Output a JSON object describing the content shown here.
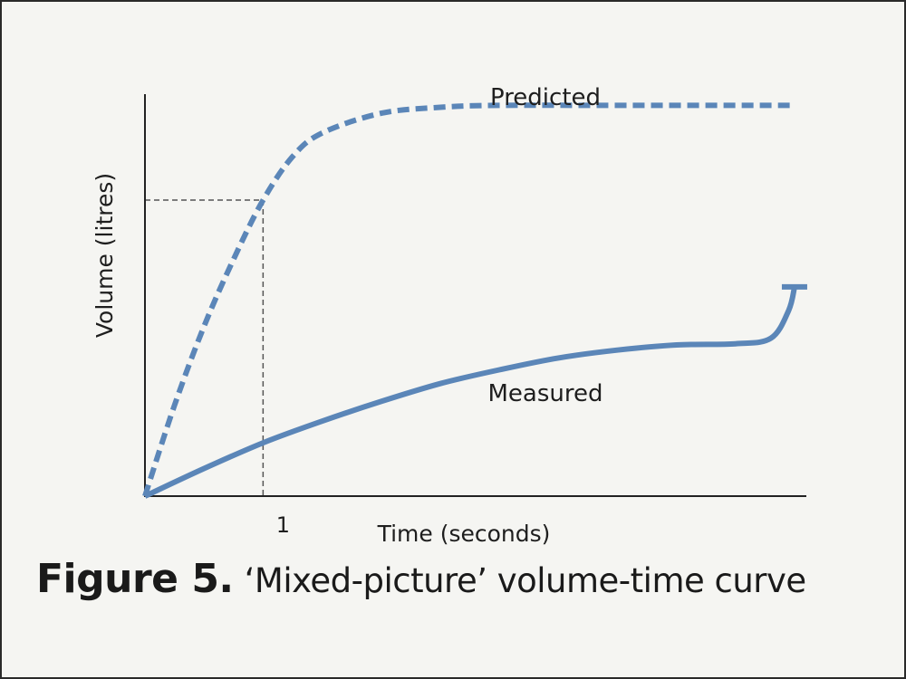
{
  "chart_data": {
    "type": "line",
    "xlabel": "Time (seconds)",
    "ylabel": "Volume (litres)",
    "x_ticks": [
      {
        "value": 1,
        "label": "1"
      }
    ],
    "xlim": [
      0,
      5.6
    ],
    "ylim": [
      0,
      100
    ],
    "reference_lines": {
      "x": 1,
      "y": 75
    },
    "grid": false,
    "legend": "none",
    "series": [
      {
        "name": "Predicted",
        "style": "dashed",
        "color": "#5b86b8",
        "x": [
          0,
          0.25,
          0.5,
          0.75,
          1.0,
          1.25,
          1.5,
          2.0,
          2.5,
          3.0,
          4.0,
          5.5
        ],
        "y": [
          0,
          23,
          43,
          60,
          75,
          86,
          92,
          97,
          98.5,
          99,
          99,
          99
        ]
      },
      {
        "name": "Measured",
        "style": "solid",
        "color": "#5b86b8",
        "x": [
          0,
          0.5,
          1.0,
          1.5,
          2.0,
          2.5,
          3.0,
          3.5,
          4.0,
          4.5,
          5.0,
          5.3,
          5.45,
          5.5
        ],
        "y": [
          0,
          7,
          13.5,
          19,
          24,
          28.5,
          32,
          35,
          37,
          38.3,
          38.6,
          40,
          47,
          53
        ]
      }
    ]
  },
  "caption": {
    "lead": "Figure 5.",
    "rest": "‘Mixed-picture’ volume-time curve"
  }
}
